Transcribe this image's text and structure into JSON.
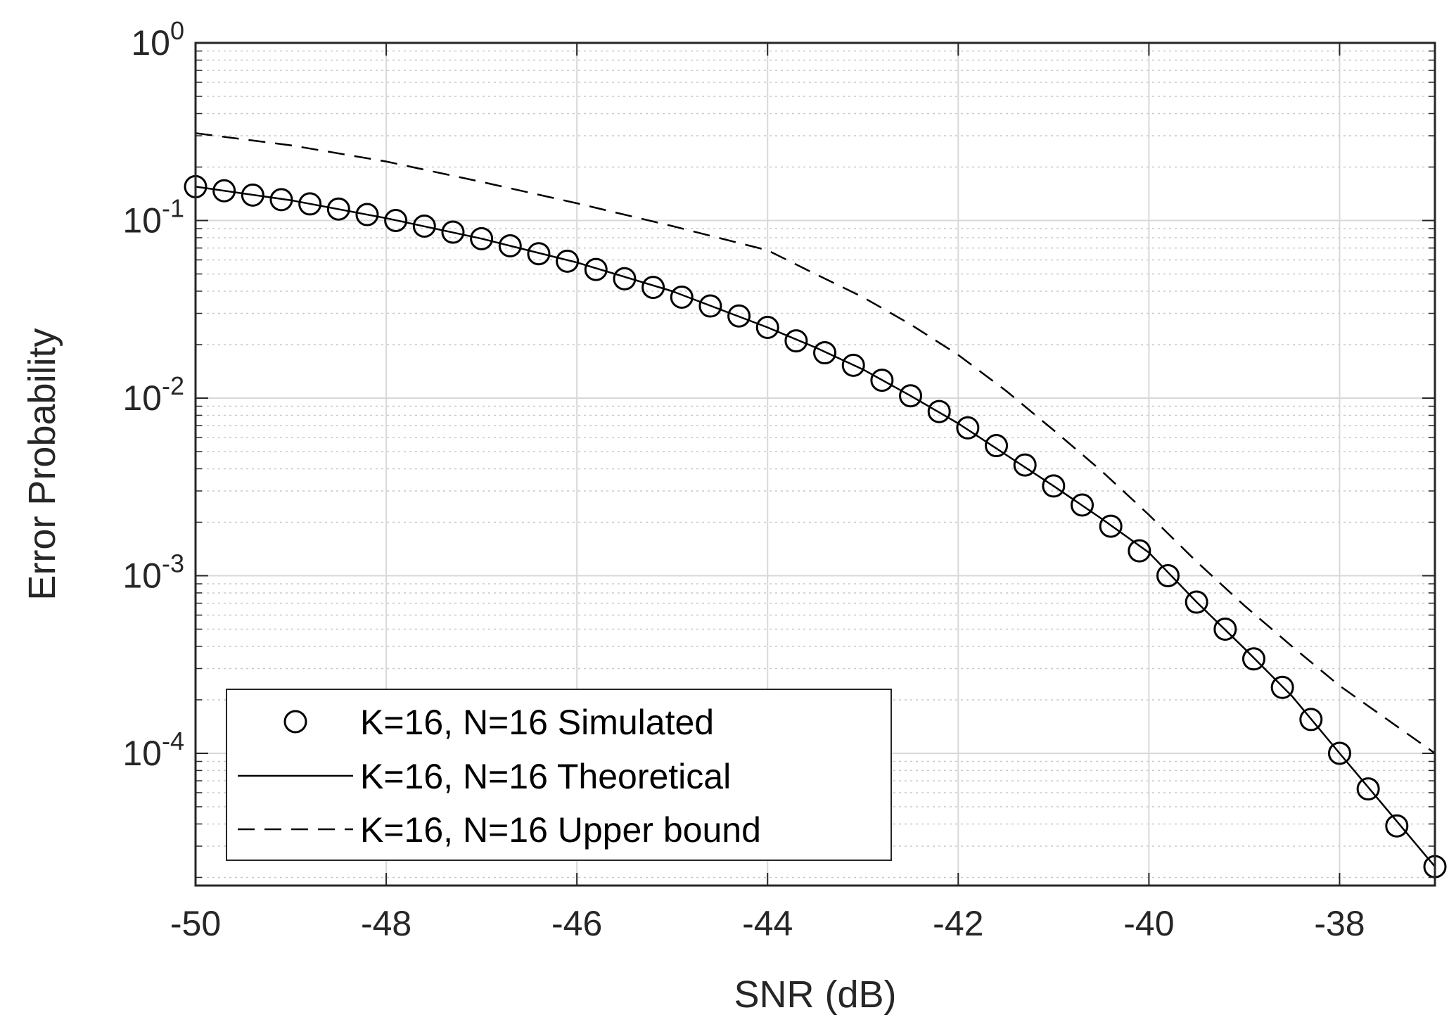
{
  "chart_data": {
    "type": "line",
    "title": "",
    "xlabel": "SNR (dB)",
    "ylabel": "Error Probability",
    "xlim": [
      -50,
      -37
    ],
    "ylim": [
      1.8e-05,
      1
    ],
    "yscale": "log",
    "grid": true,
    "minor_grid": true,
    "legend_location": "bottom-left",
    "x_ticks": [
      -50,
      -48,
      -46,
      -44,
      -42,
      -40,
      -38
    ],
    "x_tick_labels": [
      "-50",
      "-48",
      "-46",
      "-44",
      "-42",
      "-40",
      "-38"
    ],
    "y_ticks": [
      {
        "value": 1,
        "base": "10",
        "exp": "0"
      },
      {
        "value": 0.1,
        "base": "10",
        "exp": "-1"
      },
      {
        "value": 0.01,
        "base": "10",
        "exp": "-2"
      },
      {
        "value": 0.001,
        "base": "10",
        "exp": "-3"
      },
      {
        "value": 0.0001,
        "base": "10",
        "exp": "-4"
      }
    ],
    "series": [
      {
        "name": "K=16, N=16 Simulated",
        "style": "markers",
        "marker": "circle",
        "color": "#000000",
        "x": [
          -50,
          -49.7,
          -49.4,
          -49.1,
          -48.8,
          -48.5,
          -48.2,
          -47.9,
          -47.6,
          -47.3,
          -47,
          -46.7,
          -46.4,
          -46.1,
          -45.8,
          -45.5,
          -45.2,
          -44.9,
          -44.6,
          -44.3,
          -44,
          -43.7,
          -43.4,
          -43.1,
          -42.8,
          -42.5,
          -42.2,
          -41.9,
          -41.6,
          -41.3,
          -41,
          -40.7,
          -40.4,
          -40.1,
          -39.8,
          -39.5,
          -39.2,
          -38.9,
          -38.6,
          -38.3,
          -38,
          -37.7,
          -37.4,
          -37
        ],
        "values": [
          0.155,
          0.147,
          0.139,
          0.131,
          0.124,
          0.116,
          0.108,
          0.1,
          0.093,
          0.086,
          0.079,
          0.072,
          0.065,
          0.059,
          0.053,
          0.047,
          0.042,
          0.037,
          0.033,
          0.029,
          0.025,
          0.021,
          0.018,
          0.0153,
          0.0126,
          0.0103,
          0.0084,
          0.0068,
          0.0054,
          0.0042,
          0.0032,
          0.0025,
          0.0019,
          0.00138,
          0.001,
          0.00071,
          0.0005,
          0.00034,
          0.000235,
          0.000155,
          0.0001,
          6.3e-05,
          3.9e-05,
          2.3e-05
        ]
      },
      {
        "name": "K=16, N=16 Theoretical",
        "style": "solid",
        "color": "#000000",
        "x": [
          -50,
          -49,
          -48,
          -47,
          -46,
          -45,
          -44,
          -43.5,
          -43,
          -42.5,
          -42,
          -41.5,
          -41,
          -40.5,
          -40,
          -39.5,
          -39,
          -38.5,
          -38,
          -37.5,
          -37
        ],
        "values": [
          0.155,
          0.13,
          0.103,
          0.079,
          0.058,
          0.04,
          0.025,
          0.0193,
          0.0145,
          0.0103,
          0.0072,
          0.0048,
          0.0032,
          0.0021,
          0.00135,
          0.00071,
          0.00039,
          0.00021,
          0.0001,
          4.8e-05,
          2.3e-05
        ]
      },
      {
        "name": "K=16, N=16 Upper bound",
        "style": "dashed",
        "color": "#000000",
        "x": [
          -50,
          -49,
          -48,
          -47,
          -46,
          -45,
          -44,
          -43.5,
          -43,
          -42.5,
          -42,
          -41.5,
          -41,
          -40.5,
          -40,
          -39.5,
          -39,
          -38.5,
          -38,
          -37.5,
          -37
        ],
        "values": [
          0.31,
          0.265,
          0.215,
          0.165,
          0.125,
          0.093,
          0.068,
          0.05,
          0.037,
          0.026,
          0.0175,
          0.011,
          0.0066,
          0.0039,
          0.0022,
          0.0012,
          0.00068,
          0.0004,
          0.00024,
          0.000155,
          0.0001
        ]
      }
    ]
  }
}
